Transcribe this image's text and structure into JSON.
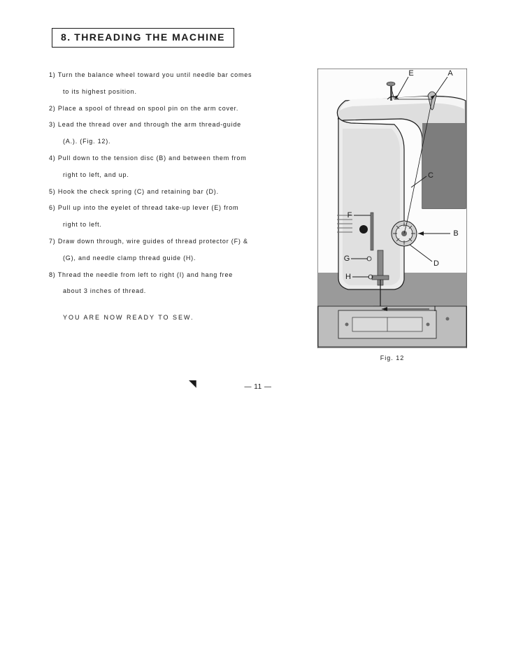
{
  "section": {
    "number": "8.",
    "title": "THREADING THE MACHINE"
  },
  "instructions": {
    "items": [
      {
        "num": "1)",
        "text": "Turn the balance wheel toward you until needle bar comes",
        "cont": "to its highest position."
      },
      {
        "num": "2)",
        "text": "Place a spool of thread on spool pin on the arm cover."
      },
      {
        "num": "3)",
        "text": "Lead the thread over and through the arm thread-guide",
        "cont": "(A.). (Fig. 12)."
      },
      {
        "num": "4)",
        "text": "Pull down to the tension disc (B) and between them from",
        "cont": "right to left, and up."
      },
      {
        "num": "5)",
        "text": "Hook the check spring (C) and retaining bar (D)."
      },
      {
        "num": "6)",
        "text": "Pull up into the eyelet of thread take-up lever (E) from",
        "cont": "right to left."
      },
      {
        "num": "7)",
        "text": "Draw down through, wire guides of thread protector (F) &",
        "cont": "(G), and needle clamp thread guide (H)."
      },
      {
        "num": "8)",
        "text": "Thread the needle from left to right (I) and hang free",
        "cont": "about 3 inches of thread."
      }
    ],
    "ready": "YOU ARE NOW READY TO SEW."
  },
  "figure": {
    "caption": "Fig. 12",
    "labels": {
      "A": "A",
      "B": "B",
      "C": "C",
      "D": "D",
      "E": "E",
      "F": "F",
      "G": "G",
      "H": "H",
      "I": "I"
    },
    "colors": {
      "machine_light": "#e8e8e8",
      "machine_mid": "#b0b0b0",
      "machine_dark": "#6a6a6a",
      "machine_shadow": "#3a3a3a",
      "line": "#1a1a1a",
      "text": "#1a1a1a",
      "border": "#1a1a1a",
      "white": "#ffffff"
    }
  },
  "page_number": "— 11 —"
}
